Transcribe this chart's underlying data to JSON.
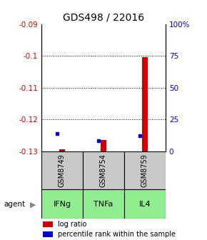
{
  "title": "GDS498 / 22016",
  "samples": [
    "GSM8749",
    "GSM8754",
    "GSM8759"
  ],
  "agents": [
    "IFNg",
    "TNFa",
    "IL4"
  ],
  "ylim_left": [
    -0.13,
    -0.09
  ],
  "ylim_right": [
    0,
    100
  ],
  "yticks_left": [
    -0.13,
    -0.12,
    -0.11,
    -0.1,
    -0.09
  ],
  "yticks_right": [
    0,
    25,
    50,
    75,
    100
  ],
  "ytick_labels_right": [
    "0",
    "25",
    "50",
    "75",
    "100%"
  ],
  "log_ratio": [
    -0.1295,
    -0.1265,
    -0.1005
  ],
  "log_ratio_base": -0.1305,
  "percentile_rank": [
    14,
    8,
    12
  ],
  "bar_color": "#cc0000",
  "square_color": "#0000cc",
  "bg_color": "#ffffff",
  "gray_box_color": "#c8c8c8",
  "green_box_color": "#90ee90",
  "left_label_color": "#cc0000",
  "right_label_color": "#0000cc",
  "bar_width": 0.15,
  "x_positions": [
    0,
    1,
    2
  ]
}
